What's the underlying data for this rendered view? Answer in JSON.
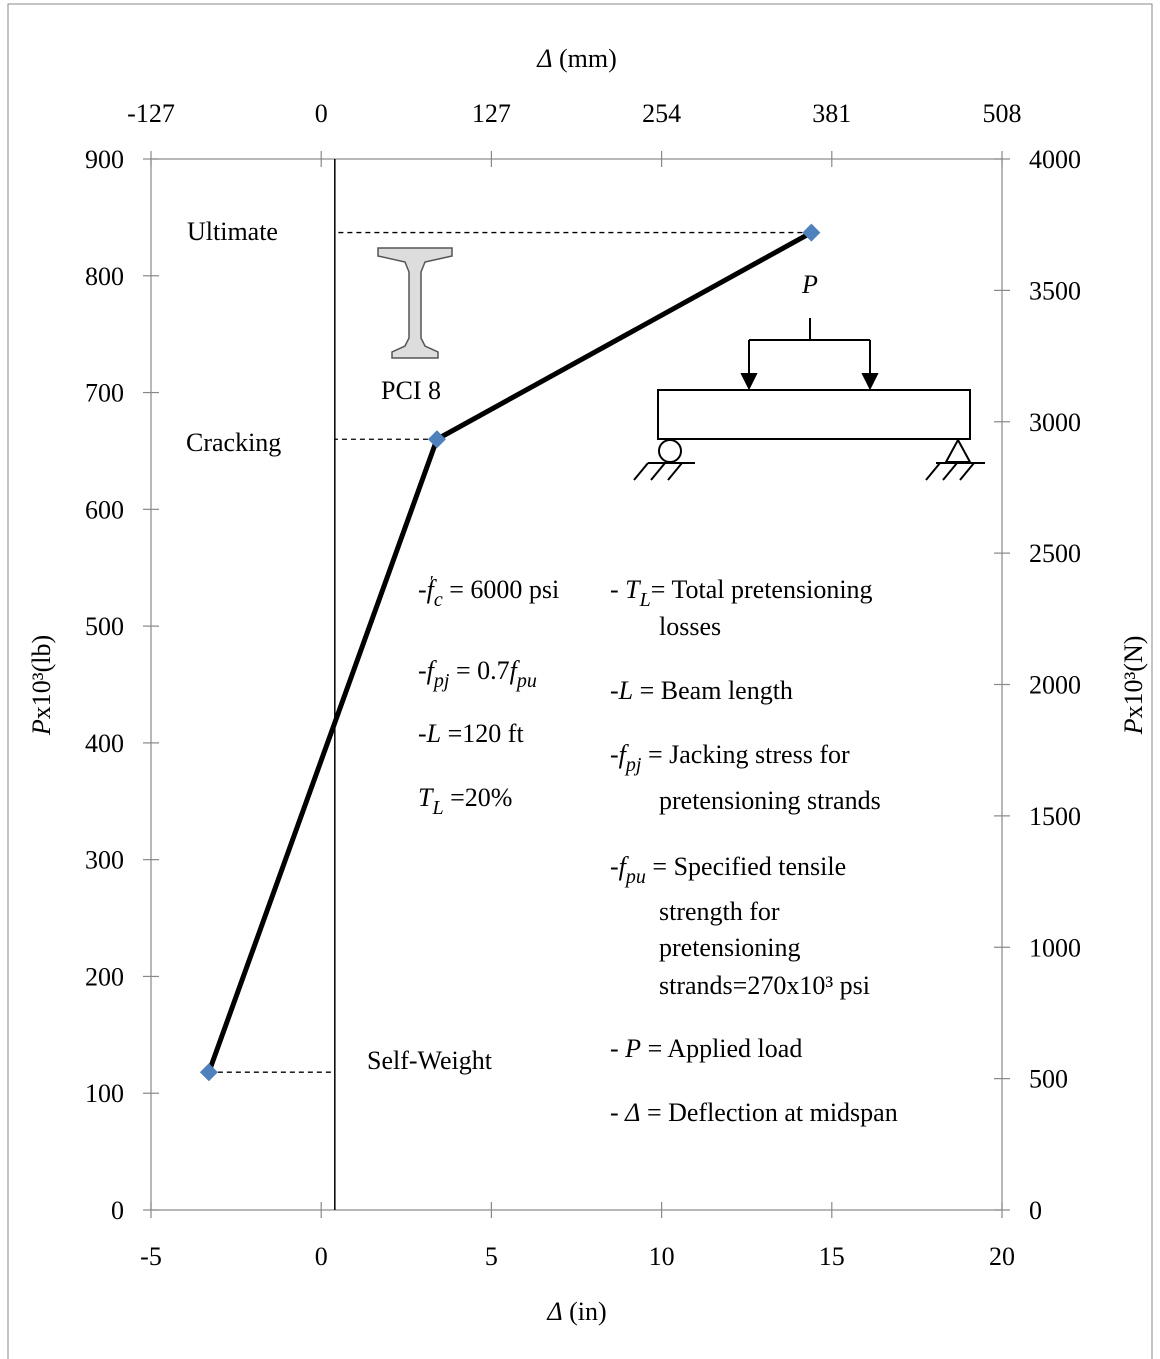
{
  "chart_data": {
    "type": "line",
    "x_label": [
      {
        "text": "Δ",
        "style": "i"
      },
      {
        "text": " (in)",
        "style": "n"
      }
    ],
    "x2_label": [
      {
        "text": "Δ",
        "style": "i"
      },
      {
        "text": " (mm)",
        "style": "n"
      }
    ],
    "y_label": [
      {
        "text": "P",
        "style": "i"
      },
      {
        "text": "x10³(lb)",
        "style": "n"
      }
    ],
    "y2_label": [
      {
        "text": "P",
        "style": "i"
      },
      {
        "text": "x10³(N)",
        "style": "n"
      }
    ],
    "x": [
      -3.3,
      3.4,
      14.4
    ],
    "series": [
      {
        "values": [
          118,
          660,
          837
        ],
        "color": "#000000",
        "marker_color": "#4f81bd"
      }
    ],
    "xlim": [
      -5,
      20
    ],
    "xticks": [
      -5,
      0,
      5,
      10,
      15,
      20
    ],
    "ylim": [
      0,
      900
    ],
    "yticks": [
      0,
      100,
      200,
      300,
      400,
      500,
      600,
      700,
      800,
      900
    ],
    "x2lim": [
      -127,
      508
    ],
    "x2ticks": [
      -127,
      0,
      127,
      254,
      381,
      508
    ],
    "y2lim": [
      0,
      4000
    ],
    "y2ticks": [
      0,
      500,
      1000,
      1500,
      2000,
      2500,
      3000,
      3500,
      4000
    ],
    "vline_x": 0.4,
    "annotations": [
      "Ultimate",
      "Cracking",
      "Self-Weight",
      "PCI 8",
      "P"
    ],
    "notes": [
      [
        {
          "text": "-",
          "style": "n"
        },
        {
          "text": "f",
          "style": "i"
        },
        {
          "text": "′",
          "style": "sup"
        },
        {
          "text": "c",
          "style": "sub"
        },
        {
          "text": " = 6000 psi",
          "style": "n"
        }
      ],
      [
        {
          "text": "-",
          "style": "n"
        },
        {
          "text": "f",
          "style": "i"
        },
        {
          "text": "pj",
          "style": "sub"
        },
        {
          "text": " = 0.7",
          "style": "n"
        },
        {
          "text": "f",
          "style": "i"
        },
        {
          "text": "pu",
          "style": "sub"
        }
      ],
      [
        {
          "text": "-",
          "style": "n"
        },
        {
          "text": "L",
          "style": "i"
        },
        {
          "text": " =120 ft",
          "style": "n"
        }
      ],
      [
        {
          "text": "T",
          "style": "i"
        },
        {
          "text": "L",
          "style": "sub"
        },
        {
          "text": " =20%",
          "style": "n"
        }
      ],
      [
        {
          "text": "- ",
          "style": "n"
        },
        {
          "text": "T",
          "style": "i"
        },
        {
          "text": "L",
          "style": "sub"
        },
        {
          "text": "= Total pretensioning",
          "style": "n"
        }
      ],
      [
        {
          "text": "losses",
          "style": "n"
        }
      ],
      [
        {
          "text": "-",
          "style": "n"
        },
        {
          "text": "L",
          "style": "i"
        },
        {
          "text": " = Beam length",
          "style": "n"
        }
      ],
      [
        {
          "text": "-",
          "style": "n"
        },
        {
          "text": "f",
          "style": "i"
        },
        {
          "text": "pj",
          "style": "sub"
        },
        {
          "text": " = Jacking stress for",
          "style": "n"
        }
      ],
      [
        {
          "text": "pretensioning strands",
          "style": "n"
        }
      ],
      [
        {
          "text": "-",
          "style": "n"
        },
        {
          "text": "f",
          "style": "i"
        },
        {
          "text": "pu",
          "style": "sub"
        },
        {
          "text": " = Specified tensile",
          "style": "n"
        }
      ],
      [
        {
          "text": "strength for",
          "style": "n"
        }
      ],
      [
        {
          "text": "pretensioning",
          "style": "n"
        }
      ],
      [
        {
          "text": "strands=270x10³ psi",
          "style": "n"
        }
      ],
      [
        {
          "text": "- ",
          "style": "n"
        },
        {
          "text": "P",
          "style": "i"
        },
        {
          "text": " = Applied load",
          "style": "n"
        }
      ],
      [
        {
          "text": "- ",
          "style": "n"
        },
        {
          "text": "Δ",
          "style": "i"
        },
        {
          "text": " = Deflection at midspan",
          "style": "n"
        }
      ]
    ]
  }
}
